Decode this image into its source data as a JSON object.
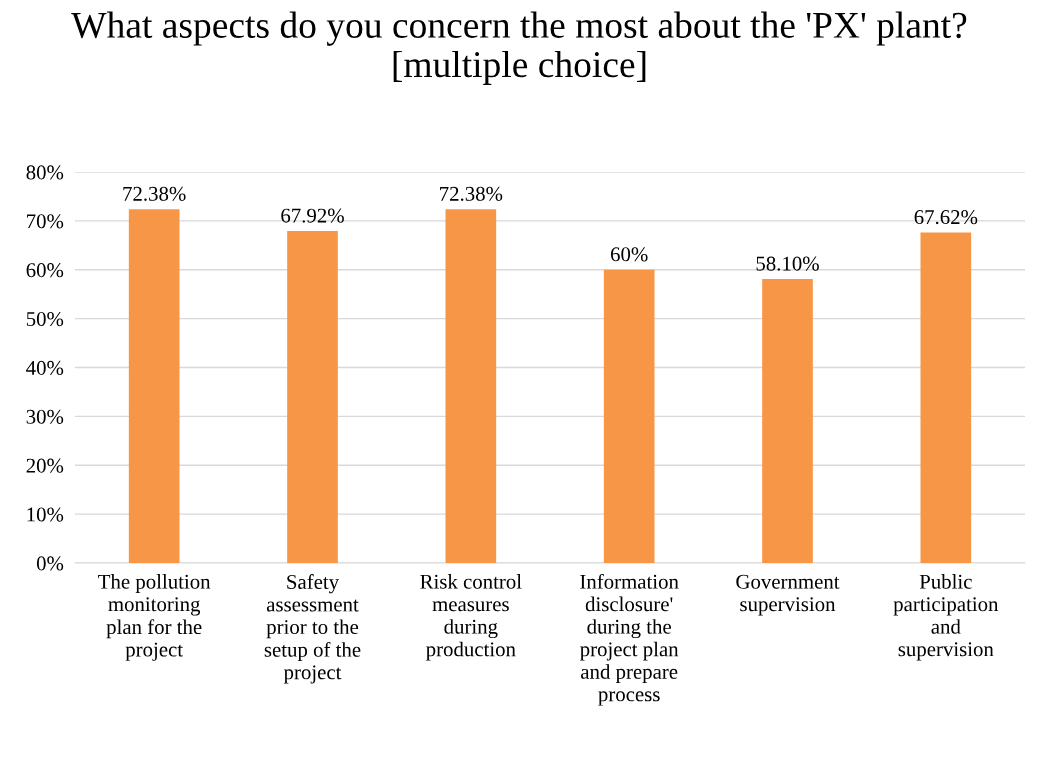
{
  "chart_data": {
    "type": "bar",
    "title": "What aspects do you concern the most about the 'PX' plant? [multiple choice]",
    "categories": [
      "The pollution monitoring plan for the project",
      "Safety assessment prior to the setup of the project",
      "Risk control measures during production",
      "Information disclosure' during the project plan and prepare process",
      "Government supervision",
      "Public participation and supervision"
    ],
    "values": [
      72.38,
      67.92,
      72.38,
      60,
      58.1,
      67.62
    ],
    "value_labels": [
      "72.38%",
      "67.92%",
      "72.38%",
      "60%",
      "58.10%",
      "67.62%"
    ],
    "color": "#f79646",
    "ylim": [
      0,
      80
    ],
    "yticks": [
      {
        "value": 0,
        "label": "0%"
      },
      {
        "value": 10,
        "label": "10%"
      },
      {
        "value": 20,
        "label": "20%"
      },
      {
        "value": 30,
        "label": "30%"
      },
      {
        "value": 40,
        "label": "40%"
      },
      {
        "value": 50,
        "label": "50%"
      },
      {
        "value": 60,
        "label": "60%"
      },
      {
        "value": 70,
        "label": "70%"
      },
      {
        "value": 80,
        "label": "80%"
      }
    ],
    "grid": "y",
    "legend": false
  }
}
